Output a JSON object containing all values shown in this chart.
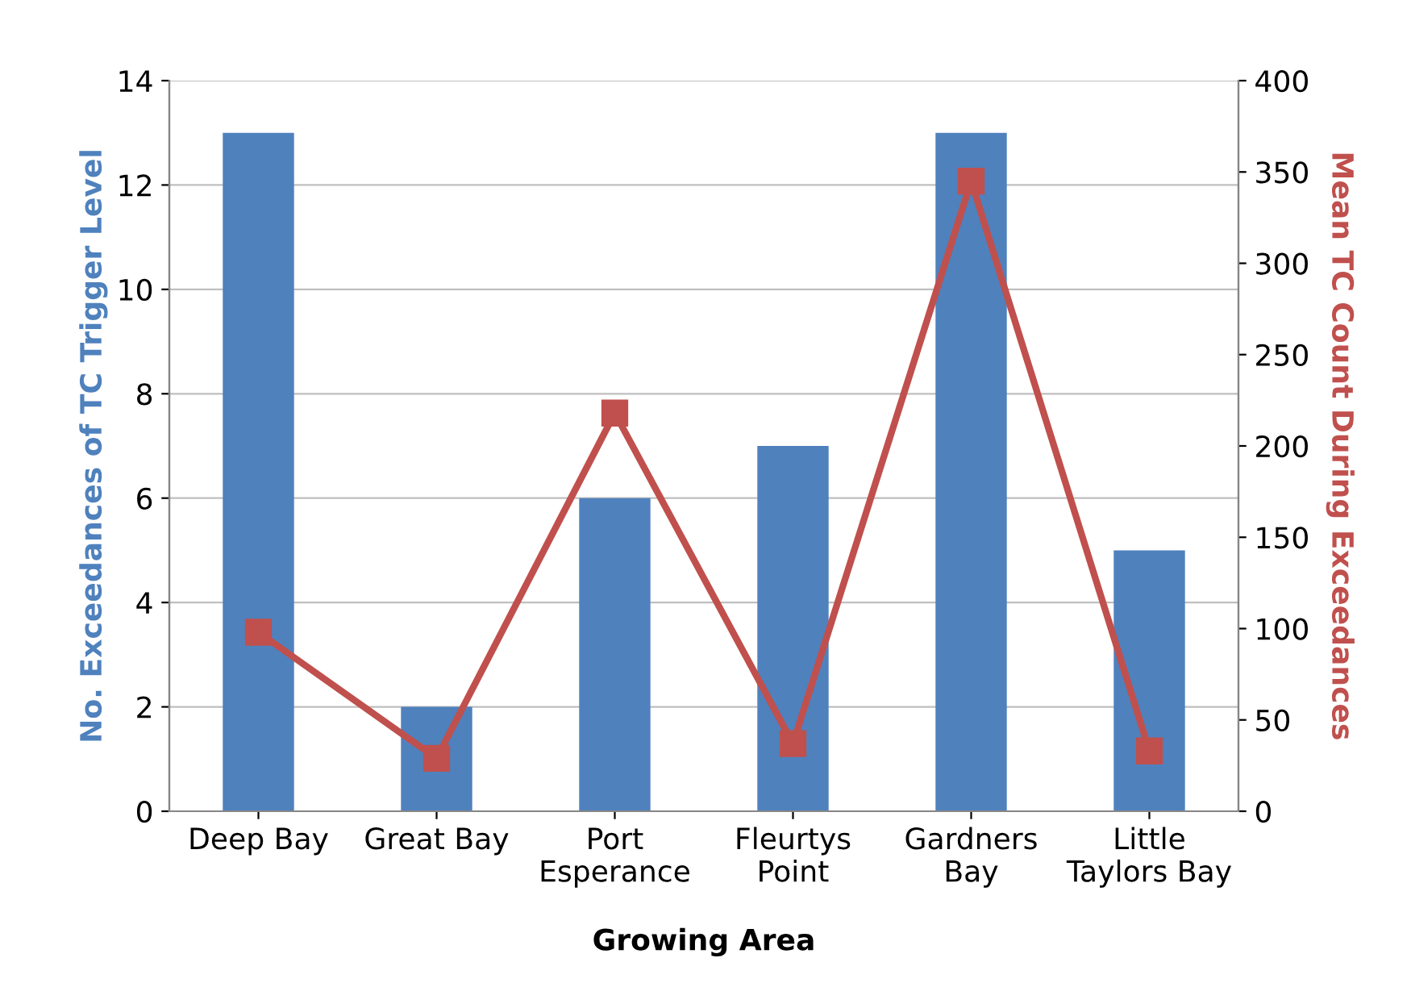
{
  "chart_data": {
    "type": "bar",
    "xlabel": "Growing Area",
    "ylabel": "No. Exceedances of TC Trigger Level",
    "y2label": "Mean TC Count During Exceedances",
    "categories": [
      "Deep Bay",
      "Great Bay",
      "Port\nEsperance",
      "Fleurtys\nPoint",
      "Gardners\nBay",
      "Little\nTaylors Bay"
    ],
    "series": [
      {
        "color": "#4f81bd",
        "values": [
          13,
          2,
          6,
          7,
          13,
          5
        ]
      },
      {
        "type": "line",
        "axis": "y2",
        "color": "#c0504d",
        "marker": "square",
        "values": [
          98,
          29,
          218,
          37,
          345,
          33
        ]
      }
    ],
    "ylim": [
      0,
      14
    ],
    "yticks": [
      0,
      2,
      4,
      6,
      8,
      10,
      12,
      14
    ],
    "y2lim": [
      0,
      400
    ],
    "y2ticks": [
      0,
      50,
      100,
      150,
      200,
      250,
      300,
      350,
      400
    ],
    "grid": "y",
    "legend": false
  }
}
